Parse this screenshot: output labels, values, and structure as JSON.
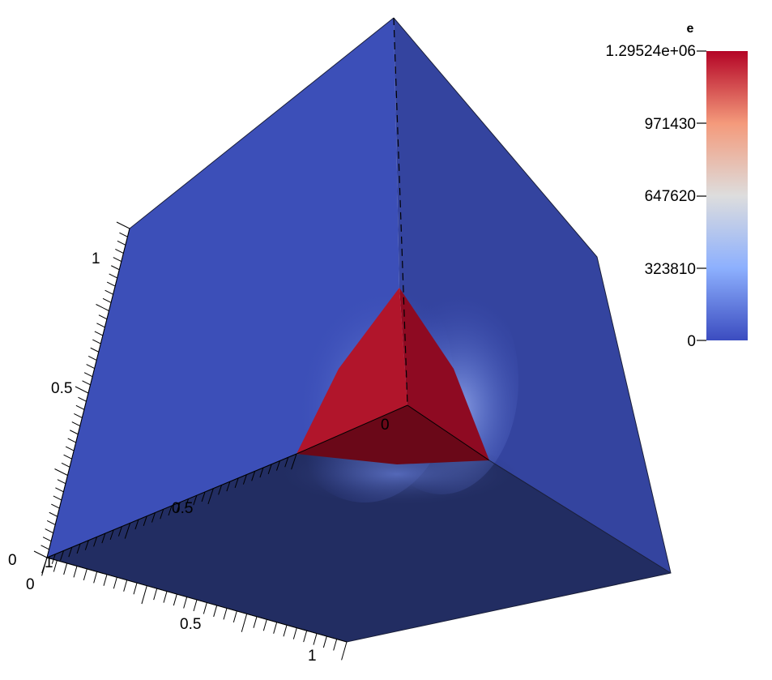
{
  "colorbar": {
    "title": "e",
    "tick_labels": [
      "1.29524e+06",
      "971430",
      "647620",
      "323810",
      "0"
    ],
    "colormap": [
      "#3b4cc0",
      "#8db0fe",
      "#dddddd",
      "#f49a7b",
      "#b40426"
    ]
  },
  "axes": {
    "vertical_axis_labels": [
      "1",
      "0.5",
      "0"
    ],
    "depth_axis_labels": [
      "0",
      "0.5"
    ],
    "front_axis_labels": [
      "0",
      "0.5",
      "1"
    ],
    "corner_label": "1"
  },
  "colors": {
    "left_face": "#3c4fb8",
    "right_face": "#34449f",
    "bottom_face": "#222d62",
    "hot_face_left": "#b1152b",
    "hot_face_right": "#8e0a22",
    "hot_face_bottom": "#6a0818"
  }
}
